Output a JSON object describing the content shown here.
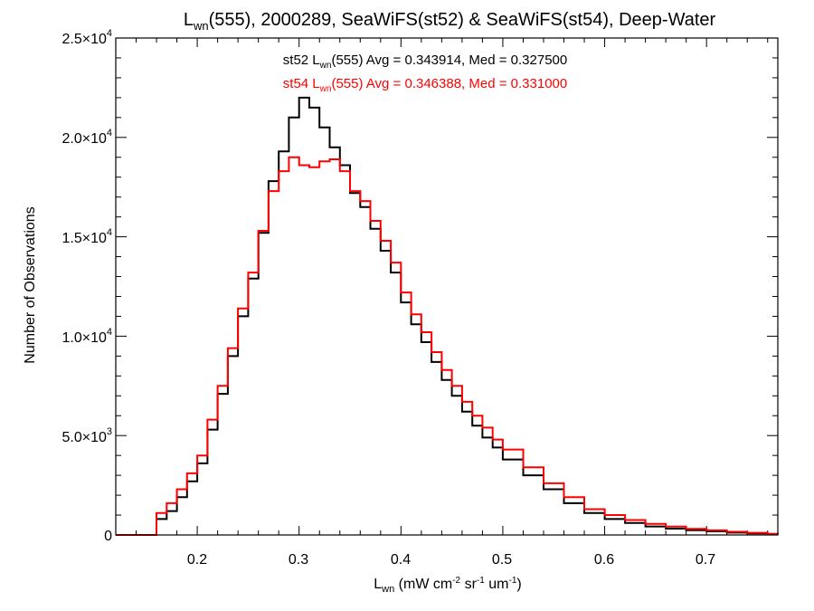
{
  "chart_data": {
    "type": "line",
    "title": {
      "pre": "L",
      "sub": "wn",
      "post": "(555), 2000289, SeaWiFS(st52) & SeaWiFS(st54), Deep-Water"
    },
    "xlabel": {
      "pre": "L",
      "sub": "wn",
      "mid1": " (mW cm",
      "sup1": "-2",
      "mid2": " sr",
      "sup2": "-1",
      "mid3": " um",
      "sup3": "-1",
      "post": ")"
    },
    "ylabel": "Number of Observations",
    "xlim": [
      0.12,
      0.77
    ],
    "ylim": [
      0,
      25000
    ],
    "xticks": [
      0.2,
      0.3,
      0.4,
      0.5,
      0.6,
      0.7
    ],
    "xtick_labels": [
      "0.2",
      "0.3",
      "0.4",
      "0.5",
      "0.6",
      "0.7"
    ],
    "yticks": [
      0,
      5000,
      10000,
      15000,
      20000,
      25000
    ],
    "ytick_labels": [
      {
        "mant": "0",
        "exp": ""
      },
      {
        "mant": "5.0×10",
        "exp": "3"
      },
      {
        "mant": "1.0×10",
        "exp": "4"
      },
      {
        "mant": "1.5×10",
        "exp": "4"
      },
      {
        "mant": "2.0×10",
        "exp": "4"
      },
      {
        "mant": "2.5×10",
        "exp": "4"
      }
    ],
    "annotations": [
      {
        "pre": "st52 L",
        "sub": "wn",
        "post": "(555) Avg = 0.343914, Med = 0.327500",
        "color": "#000000"
      },
      {
        "pre": "st54 L",
        "sub": "wn",
        "post": "(555) Avg = 0.346388, Med = 0.331000",
        "color": "#ff0000"
      }
    ],
    "series": [
      {
        "color": "#000000",
        "x": [
          0.12,
          0.15,
          0.16,
          0.17,
          0.18,
          0.19,
          0.2,
          0.21,
          0.22,
          0.23,
          0.24,
          0.25,
          0.26,
          0.27,
          0.28,
          0.29,
          0.3,
          0.31,
          0.32,
          0.33,
          0.34,
          0.35,
          0.36,
          0.37,
          0.38,
          0.39,
          0.4,
          0.41,
          0.42,
          0.43,
          0.44,
          0.45,
          0.46,
          0.47,
          0.48,
          0.49,
          0.5,
          0.52,
          0.54,
          0.56,
          0.58,
          0.6,
          0.62,
          0.64,
          0.66,
          0.68,
          0.7,
          0.72,
          0.74,
          0.76,
          0.77
        ],
        "y": [
          0,
          0,
          800,
          1200,
          1900,
          2700,
          3600,
          5300,
          7100,
          9000,
          11000,
          12900,
          15200,
          17800,
          19300,
          21000,
          22000,
          21500,
          20500,
          19500,
          18600,
          17200,
          16500,
          15400,
          14300,
          13200,
          11700,
          10600,
          9700,
          8700,
          7800,
          7000,
          6200,
          5500,
          4900,
          4400,
          3800,
          3000,
          2300,
          1600,
          1100,
          800,
          600,
          430,
          320,
          240,
          180,
          120,
          80,
          40,
          30
        ]
      },
      {
        "color": "#ff0000",
        "x": [
          0.12,
          0.15,
          0.16,
          0.17,
          0.18,
          0.19,
          0.2,
          0.21,
          0.22,
          0.23,
          0.24,
          0.25,
          0.26,
          0.27,
          0.28,
          0.29,
          0.3,
          0.31,
          0.32,
          0.33,
          0.34,
          0.35,
          0.36,
          0.37,
          0.38,
          0.39,
          0.4,
          0.41,
          0.42,
          0.43,
          0.44,
          0.45,
          0.46,
          0.47,
          0.48,
          0.49,
          0.5,
          0.52,
          0.54,
          0.56,
          0.58,
          0.6,
          0.62,
          0.64,
          0.66,
          0.68,
          0.7,
          0.72,
          0.74,
          0.76,
          0.77
        ],
        "y": [
          0,
          0,
          1100,
          1600,
          2300,
          3100,
          4000,
          5800,
          7500,
          9400,
          11400,
          13200,
          15300,
          17300,
          18300,
          19000,
          18600,
          18500,
          18800,
          18900,
          18300,
          17300,
          16800,
          15800,
          14800,
          13700,
          12200,
          11100,
          10200,
          9200,
          8300,
          7500,
          6700,
          6000,
          5400,
          4800,
          4300,
          3400,
          2600,
          1900,
          1300,
          1000,
          750,
          560,
          420,
          310,
          230,
          160,
          110,
          60,
          40
        ]
      }
    ]
  }
}
